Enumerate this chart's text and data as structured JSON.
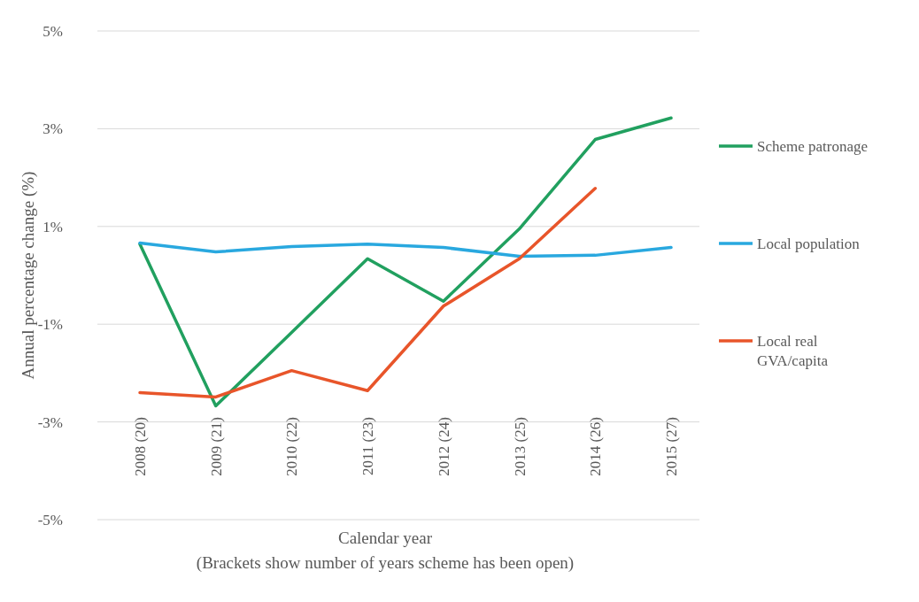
{
  "chart_data": {
    "type": "line",
    "ylabel": "Annual percentage change (%)",
    "xlabel": "Calendar year",
    "annotations": [
      "(Brackets show number of years scheme has been open)"
    ],
    "categories": [
      "2008 (20)",
      "2009 (21)",
      "2010 (22)",
      "2011 (23)",
      "2012 (24)",
      "2013 (25)",
      "2014 (26)",
      "2015 (27)"
    ],
    "ylim": [
      -5,
      5
    ],
    "yticks": [
      {
        "value": 5,
        "label": "5%"
      },
      {
        "value": 3,
        "label": "3%"
      },
      {
        "value": 1,
        "label": "1%"
      },
      {
        "value": -1,
        "label": "-1%"
      },
      {
        "value": -3,
        "label": "-3%"
      },
      {
        "value": -5,
        "label": "-5%"
      }
    ],
    "grid": "y",
    "legend": "right",
    "marker": "none",
    "line_style": "solid",
    "series": [
      {
        "name": "Scheme patronage",
        "color": "#21a05f",
        "values": [
          0.64,
          -2.67,
          -1.17,
          0.34,
          -0.53,
          0.95,
          2.78,
          3.22
        ]
      },
      {
        "name": "Local population",
        "color": "#29a8df",
        "values": [
          0.66,
          0.48,
          0.59,
          0.64,
          0.57,
          0.39,
          0.41,
          0.57
        ]
      },
      {
        "name": "Local real GVA/capita",
        "color": "#e8552a",
        "values": [
          -2.4,
          -2.49,
          -1.95,
          -2.36,
          -0.63,
          0.34,
          1.78,
          null
        ]
      }
    ]
  }
}
